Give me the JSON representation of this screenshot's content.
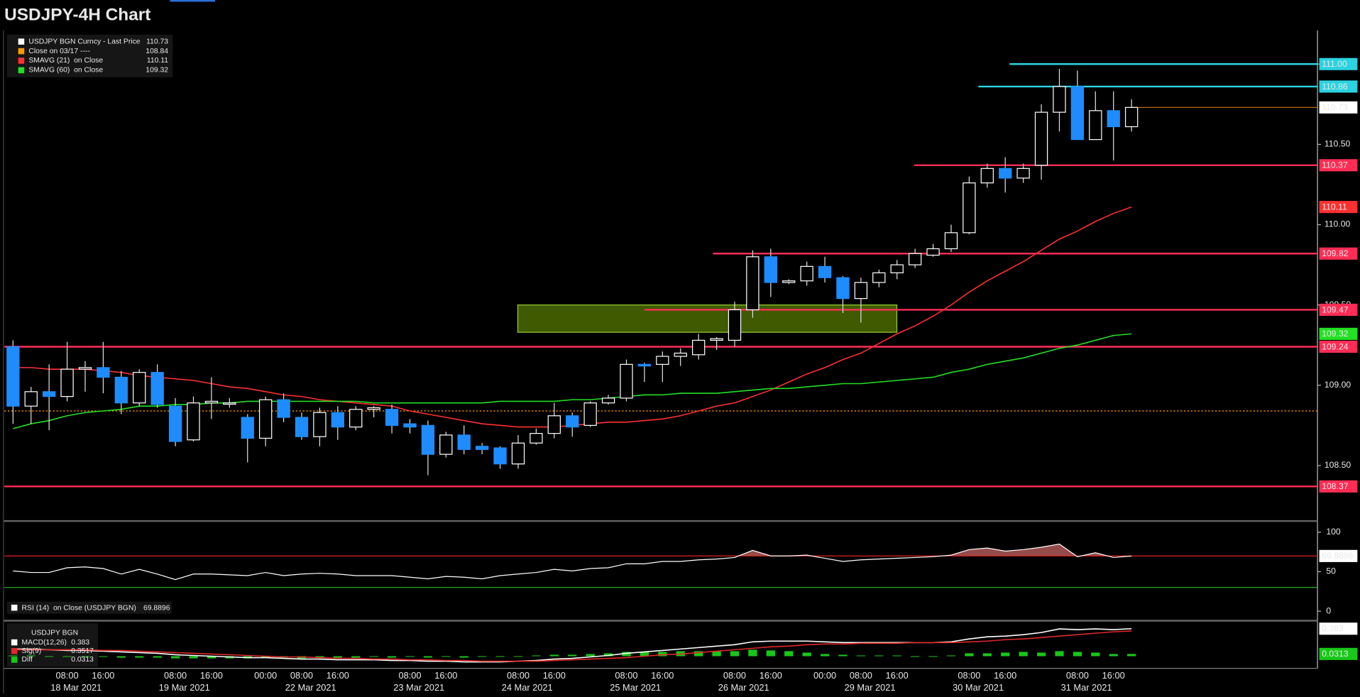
{
  "chart_data": [
    {
      "type": "candlestick",
      "title": "USDJPY-4H Chart",
      "price_name": "USDJPY BGN Curncy - Last Price",
      "up_color": "#ffffff",
      "down_color": "#1e8cff",
      "ylim": [
        108.16,
        111.21
      ],
      "yticks": [
        {
          "value": 108.5,
          "label": "108.50"
        },
        {
          "value": 109,
          "label": "109.00"
        },
        {
          "value": 109.5,
          "label": "109.50"
        },
        {
          "value": 110,
          "label": "110.00"
        },
        {
          "value": 110.5,
          "label": "110.50"
        },
        {
          "value": 111,
          "label": "111.00"
        }
      ],
      "open": [
        109.24,
        108.87,
        108.96,
        108.93,
        109.1,
        109.11,
        109.05,
        108.89,
        109.08,
        108.87,
        108.66,
        108.89,
        108.89,
        108.8,
        108.67,
        108.91,
        108.8,
        108.68,
        108.83,
        108.74,
        108.85,
        108.85,
        108.76,
        108.75,
        108.57,
        108.69,
        108.62,
        108.61,
        108.51,
        108.64,
        108.7,
        108.81,
        108.75,
        108.89,
        108.92,
        109.13,
        109.13,
        109.18,
        109.19,
        109.28,
        109.28,
        109.47,
        109.8,
        109.64,
        109.65,
        109.74,
        109.67,
        109.54,
        109.64,
        109.7,
        109.75,
        109.81,
        109.85,
        109.95,
        110.26,
        110.35,
        110.29,
        110.37,
        110.7,
        110.86,
        110.53,
        110.71,
        110.61
      ],
      "high": [
        109.28,
        108.99,
        109.13,
        109.27,
        109.15,
        109.27,
        109.09,
        109.1,
        109.13,
        108.92,
        108.93,
        109.05,
        108.92,
        108.82,
        108.93,
        108.95,
        108.83,
        108.86,
        108.87,
        108.87,
        108.87,
        108.88,
        108.79,
        108.78,
        108.71,
        108.75,
        108.64,
        108.62,
        108.69,
        108.73,
        108.89,
        108.83,
        108.9,
        108.94,
        109.16,
        109.14,
        109.21,
        109.23,
        109.32,
        109.3,
        109.52,
        109.84,
        109.85,
        109.66,
        109.77,
        109.8,
        109.68,
        109.67,
        109.72,
        109.78,
        109.85,
        109.88,
        110.0,
        110.3,
        110.38,
        110.42,
        110.38,
        110.75,
        110.97,
        110.96,
        110.83,
        110.83,
        110.78
      ],
      "low": [
        108.76,
        108.76,
        108.72,
        108.9,
        108.96,
        108.95,
        108.82,
        108.87,
        108.86,
        108.62,
        108.65,
        108.79,
        108.86,
        108.52,
        108.62,
        108.77,
        108.66,
        108.62,
        108.66,
        108.72,
        108.8,
        108.7,
        108.7,
        108.44,
        108.55,
        108.57,
        108.57,
        108.48,
        108.48,
        108.63,
        108.67,
        108.68,
        108.74,
        108.88,
        108.9,
        109.02,
        109.02,
        109.12,
        109.16,
        109.22,
        109.24,
        109.42,
        109.55,
        109.63,
        109.62,
        109.64,
        109.45,
        109.39,
        109.61,
        109.66,
        109.73,
        109.8,
        109.83,
        109.94,
        110.23,
        110.2,
        110.26,
        110.28,
        110.58,
        110.53,
        110.53,
        110.4,
        110.58
      ],
      "close": [
        108.87,
        108.96,
        108.93,
        109.1,
        109.11,
        109.05,
        108.89,
        109.08,
        108.88,
        108.65,
        108.89,
        108.9,
        108.89,
        108.67,
        108.91,
        108.8,
        108.68,
        108.83,
        108.74,
        108.85,
        108.86,
        108.75,
        108.74,
        108.57,
        108.69,
        108.6,
        108.6,
        108.51,
        108.64,
        108.7,
        108.81,
        108.74,
        108.89,
        108.92,
        109.13,
        109.12,
        109.18,
        109.2,
        109.28,
        109.29,
        109.47,
        109.8,
        109.64,
        109.65,
        109.74,
        109.67,
        109.54,
        109.64,
        109.7,
        109.75,
        109.82,
        109.85,
        109.95,
        110.26,
        110.35,
        110.29,
        110.35,
        110.7,
        110.86,
        110.53,
        110.71,
        110.61,
        110.73
      ],
      "series": [
        {
          "name": "SMAVG (21)  on Close",
          "color": "#ff3030",
          "values": [
            109.11,
            109.11,
            109.1,
            109.1,
            109.1,
            109.09,
            109.08,
            109.06,
            109.05,
            109.04,
            109.03,
            109.01,
            108.99,
            108.98,
            108.96,
            108.94,
            108.93,
            108.91,
            108.9,
            108.89,
            108.88,
            108.87,
            108.84,
            108.82,
            108.8,
            108.78,
            108.76,
            108.75,
            108.74,
            108.74,
            108.74,
            108.75,
            108.76,
            108.77,
            108.77,
            108.78,
            108.79,
            108.81,
            108.84,
            108.87,
            108.89,
            108.93,
            108.97,
            109.02,
            109.07,
            109.11,
            109.16,
            109.2,
            109.26,
            109.32,
            109.37,
            109.43,
            109.5,
            109.58,
            109.65,
            109.71,
            109.77,
            109.84,
            109.91,
            109.96,
            110.02,
            110.07,
            110.11
          ]
        },
        {
          "name": "SMAVG (60)  on Close",
          "color": "#22e022",
          "values": [
            108.73,
            108.76,
            108.78,
            108.81,
            108.83,
            108.84,
            108.85,
            108.87,
            108.87,
            108.88,
            108.88,
            108.89,
            108.89,
            108.9,
            108.9,
            108.9,
            108.9,
            108.9,
            108.9,
            108.9,
            108.89,
            108.89,
            108.89,
            108.89,
            108.89,
            108.89,
            108.89,
            108.9,
            108.9,
            108.9,
            108.9,
            108.91,
            108.91,
            108.92,
            108.93,
            108.94,
            108.94,
            108.95,
            108.95,
            108.95,
            108.96,
            108.97,
            108.98,
            108.98,
            108.99,
            109.0,
            109.01,
            109.01,
            109.02,
            109.03,
            109.04,
            109.05,
            109.08,
            109.1,
            109.13,
            109.15,
            109.17,
            109.2,
            109.23,
            109.25,
            109.28,
            109.31,
            109.32
          ]
        }
      ],
      "close_line": {
        "name": "Close on 03/17 ----",
        "value": 108.84,
        "color": "#ff9900"
      },
      "levels": [
        {
          "value": 111,
          "label": "111.00",
          "color": "#2bd3e0",
          "text_color": "#000000"
        },
        {
          "value": 110.86,
          "color": "#2bd3e0",
          "text_color": "#000000"
        },
        {
          "value": 110.37,
          "color": "#ff2d55",
          "text_color": "#ffffff"
        },
        {
          "value": 109.82,
          "color": "#ff2d55",
          "text_color": "#ffffff"
        },
        {
          "value": 109.47,
          "color": "#ff2d55",
          "text_color": "#ffffff"
        },
        {
          "value": 109.24,
          "color": "#ff2d55",
          "text_color": "#ffffff"
        },
        {
          "value": 108.37,
          "color": "#ff2d55",
          "text_color": "#ffffff"
        }
      ],
      "zone": {
        "ylim": [
          109.33,
          109.5
        ],
        "color": "#4a6a00"
      }
    },
    {
      "type": "line",
      "ylim": [
        -11,
        112
      ],
      "yticks": [
        0,
        50,
        100
      ],
      "series": [
        {
          "name": "RSI (14)  on Close (USDJPY BGN)",
          "color": "#ffffff",
          "values": [
            51,
            49,
            49,
            55,
            56,
            54,
            47,
            53,
            47,
            40,
            47,
            47,
            46,
            45,
            49,
            45,
            47,
            48,
            47,
            45,
            45,
            45,
            43,
            41,
            44,
            43,
            41,
            45,
            47,
            49,
            53,
            51,
            54,
            55,
            60,
            60,
            63,
            63,
            65,
            66,
            68,
            77,
            70,
            70,
            71,
            67,
            63,
            65,
            66,
            67,
            68,
            69,
            71,
            78,
            80,
            76,
            78,
            81,
            85,
            69,
            74,
            68,
            69.8896
          ]
        }
      ],
      "levels": [
        {
          "value": 70,
          "color": "#e02020"
        },
        {
          "value": 30,
          "color": "#20c020"
        }
      ]
    },
    {
      "type": "macd",
      "title": "USDJPY BGN",
      "ylim": [
        -0.17,
        0.47
      ],
      "series": [
        {
          "name": "MACD(12,26)",
          "color": "#ffffff",
          "values": [
            0.1,
            0.1,
            0.09,
            0.08,
            0.08,
            0.07,
            0.06,
            0.05,
            0.04,
            0.02,
            0.01,
            0.0,
            -0.01,
            -0.02,
            -0.02,
            -0.03,
            -0.04,
            -0.04,
            -0.05,
            -0.05,
            -0.05,
            -0.06,
            -0.06,
            -0.07,
            -0.07,
            -0.08,
            -0.08,
            -0.08,
            -0.07,
            -0.06,
            -0.04,
            -0.03,
            -0.01,
            0.01,
            0.04,
            0.06,
            0.08,
            0.1,
            0.12,
            0.14,
            0.16,
            0.2,
            0.21,
            0.21,
            0.21,
            0.2,
            0.19,
            0.19,
            0.19,
            0.19,
            0.19,
            0.19,
            0.2,
            0.24,
            0.27,
            0.28,
            0.3,
            0.33,
            0.38,
            0.37,
            0.38,
            0.37,
            0.383
          ]
        },
        {
          "name": "Sig(9)",
          "color": "#e02828",
          "values": [
            0.09,
            0.09,
            0.09,
            0.09,
            0.09,
            0.08,
            0.08,
            0.07,
            0.06,
            0.05,
            0.04,
            0.03,
            0.02,
            0.01,
            0.0,
            -0.01,
            -0.01,
            -0.02,
            -0.03,
            -0.03,
            -0.04,
            -0.04,
            -0.05,
            -0.05,
            -0.06,
            -0.06,
            -0.07,
            -0.07,
            -0.07,
            -0.07,
            -0.06,
            -0.05,
            -0.04,
            -0.03,
            -0.02,
            0.0,
            0.02,
            0.03,
            0.05,
            0.07,
            0.09,
            0.11,
            0.13,
            0.14,
            0.16,
            0.17,
            0.17,
            0.18,
            0.18,
            0.18,
            0.19,
            0.19,
            0.19,
            0.2,
            0.21,
            0.23,
            0.24,
            0.26,
            0.28,
            0.3,
            0.32,
            0.34,
            0.3517
          ]
        },
        {
          "name": "Diff",
          "color": "#18c818",
          "values": [
            0.01,
            0.01,
            0.0,
            -0.01,
            -0.01,
            -0.01,
            -0.02,
            -0.02,
            -0.02,
            -0.03,
            -0.03,
            -0.03,
            -0.03,
            -0.03,
            -0.02,
            -0.02,
            -0.03,
            -0.02,
            -0.02,
            -0.02,
            -0.01,
            -0.02,
            -0.01,
            -0.02,
            -0.01,
            -0.02,
            -0.01,
            -0.01,
            0.0,
            0.01,
            0.02,
            0.02,
            0.03,
            0.04,
            0.06,
            0.06,
            0.06,
            0.07,
            0.07,
            0.07,
            0.07,
            0.09,
            0.08,
            0.07,
            0.05,
            0.03,
            0.02,
            0.01,
            0.01,
            0.01,
            0.0,
            0.0,
            0.01,
            0.04,
            0.04,
            0.05,
            0.06,
            0.05,
            0.07,
            0.06,
            0.05,
            0.03,
            0.0313
          ]
        }
      ],
      "categories": [
        null,
        null,
        null,
        "08:00",
        null,
        "16:00",
        null,
        null,
        null,
        "08:00",
        null,
        "16:00",
        null,
        null,
        "00:00",
        null,
        "08:00",
        null,
        "16:00",
        null,
        null,
        null,
        "08:00",
        null,
        "16:00",
        null,
        null,
        null,
        "08:00",
        null,
        "16:00",
        null,
        null,
        null,
        "08:00",
        null,
        "16:00",
        null,
        null,
        null,
        "08:00",
        null,
        "16:00",
        null,
        null,
        "00:00",
        null,
        "08:00",
        null,
        "16:00",
        null,
        null,
        null,
        "08:00",
        null,
        "16:00",
        null,
        null,
        null,
        "08:00",
        null,
        "16:00",
        null
      ],
      "date_labels": [
        null,
        null,
        null,
        "18 Mar 2021",
        null,
        null,
        null,
        null,
        null,
        "19 Mar 2021",
        null,
        null,
        null,
        null,
        null,
        null,
        "22 Mar 2021",
        null,
        null,
        null,
        null,
        null,
        "23 Mar 2021",
        null,
        null,
        null,
        null,
        null,
        "24 Mar 2021",
        null,
        null,
        null,
        null,
        null,
        "25 Mar 2021",
        null,
        null,
        null,
        null,
        null,
        "26 Mar 2021",
        null,
        null,
        null,
        null,
        null,
        null,
        "29 Mar 2021",
        null,
        null,
        null,
        null,
        null,
        "30 Mar 2021",
        null,
        null,
        null,
        null,
        null,
        "31 Mar 2021",
        null,
        null,
        null
      ]
    }
  ]
}
